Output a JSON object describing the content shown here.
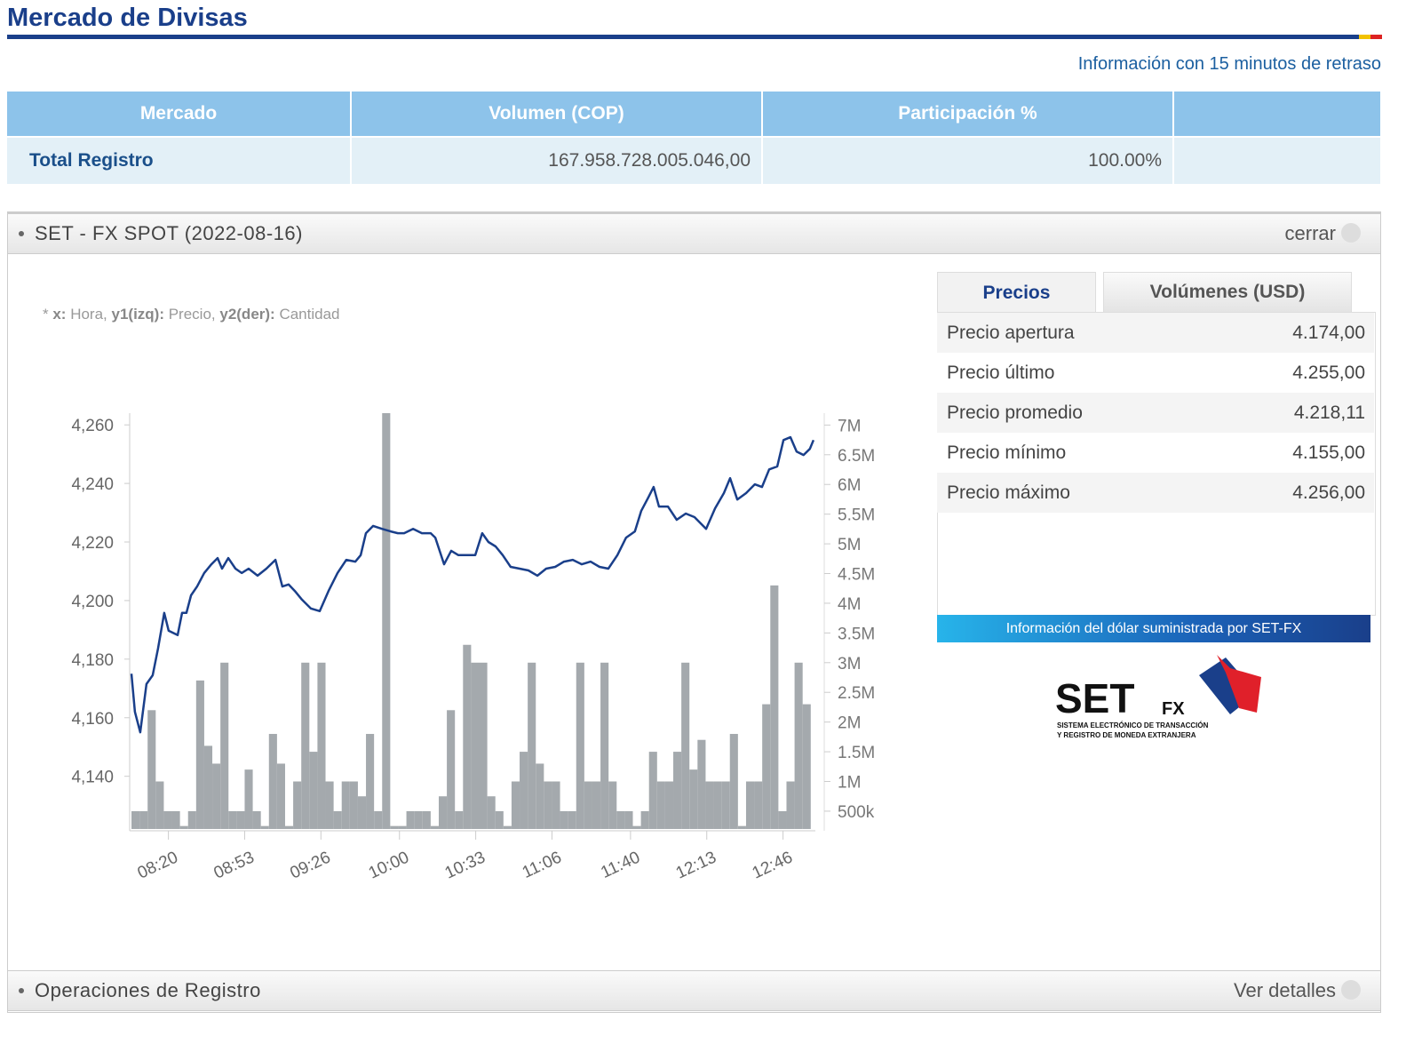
{
  "header": {
    "title": "Mercado de Divisas",
    "notice": "Información con 15 minutos de retraso"
  },
  "table": {
    "headers": [
      "Mercado",
      "Volumen (COP)",
      "Participación %"
    ],
    "rows": [
      [
        "Total Registro",
        "167.958.728.005.046,00",
        "100.00%"
      ]
    ]
  },
  "panel": {
    "title": "SET - FX SPOT (2022-08-16)",
    "action": "cerrar"
  },
  "chart_data": {
    "type": "line",
    "note": [
      {
        "text": "* ",
        "bold": false
      },
      {
        "text": "x:",
        "bold": true
      },
      {
        "text": " Hora, ",
        "bold": false
      },
      {
        "text": "y1(izq):",
        "bold": true
      },
      {
        "text": " Precio, ",
        "bold": false
      },
      {
        "text": "y2(der):",
        "bold": true
      },
      {
        "text": " Cantidad",
        "bold": false
      }
    ],
    "xlim": [
      484,
      780
    ],
    "xticks": [
      {
        "value": 500,
        "label": "08:20"
      },
      {
        "value": 533,
        "label": "08:53"
      },
      {
        "value": 566,
        "label": "09:26"
      },
      {
        "value": 600,
        "label": "10:00"
      },
      {
        "value": 633,
        "label": "10:33"
      },
      {
        "value": 666,
        "label": "11:06"
      },
      {
        "value": 700,
        "label": "11:40"
      },
      {
        "value": 733,
        "label": "12:13"
      },
      {
        "value": 766,
        "label": "12:46"
      }
    ],
    "ylim": [
      4122,
      4264
    ],
    "yticks": [
      {
        "value": 4140,
        "label": "4,140"
      },
      {
        "value": 4160,
        "label": "4,160"
      },
      {
        "value": 4180,
        "label": "4,180"
      },
      {
        "value": 4200,
        "label": "4,200"
      },
      {
        "value": 4220,
        "label": "4,220"
      },
      {
        "value": 4240,
        "label": "4,240"
      },
      {
        "value": 4260,
        "label": "4,260"
      }
    ],
    "y2lim": [
      200000,
      7200000
    ],
    "y2ticks": [
      {
        "value": 500000,
        "label": "500k"
      },
      {
        "value": 1000000,
        "label": "1M"
      },
      {
        "value": 1500000,
        "label": "1.5M"
      },
      {
        "value": 2000000,
        "label": "2M"
      },
      {
        "value": 2500000,
        "label": "2.5M"
      },
      {
        "value": 3000000,
        "label": "3M"
      },
      {
        "value": 3500000,
        "label": "3.5M"
      },
      {
        "value": 4000000,
        "label": "4M"
      },
      {
        "value": 4500000,
        "label": "4.5M"
      },
      {
        "value": 5000000,
        "label": "5M"
      },
      {
        "value": 5500000,
        "label": "5.5M"
      },
      {
        "value": 6000000,
        "label": "6M"
      },
      {
        "value": 6500000,
        "label": "6.5M"
      },
      {
        "value": 7000000,
        "label": "7M"
      }
    ],
    "series": [
      {
        "type": "bar",
        "axis": "y2",
        "color": "#a4a9ad",
        "x": [
          484,
          487.5,
          491,
          494.5,
          498,
          501.5,
          505,
          508.5,
          512,
          515.5,
          519,
          522.5,
          526,
          529.5,
          533,
          536.5,
          540,
          543.5,
          547,
          550.5,
          554,
          557.5,
          561,
          564.5,
          568,
          571.5,
          575,
          578.5,
          582,
          585.5,
          589,
          592.5,
          596,
          599.5,
          603,
          606.5,
          610,
          613.5,
          617,
          620.5,
          624,
          627.5,
          631,
          634.5,
          638,
          641.5,
          645,
          648.5,
          652,
          655.5,
          659,
          662.5,
          666,
          669.5,
          673,
          676.5,
          680,
          683.5,
          687,
          690.5,
          694,
          697.5,
          701,
          704.5,
          708,
          711.5,
          715,
          718.5,
          722,
          725.5,
          729,
          732.5,
          736,
          739.5,
          743,
          746.5,
          750,
          753.5,
          757,
          760.5,
          764,
          767.5,
          771,
          774.5
        ],
        "values": [
          500000,
          500000,
          2200000,
          1000000,
          500000,
          500000,
          250000,
          500000,
          2700000,
          1600000,
          1300000,
          3000000,
          500000,
          500000,
          1200000,
          500000,
          250000,
          1800000,
          1300000,
          250000,
          1000000,
          3000000,
          1500000,
          3000000,
          1000000,
          500000,
          1000000,
          1000000,
          750000,
          1800000,
          500000,
          7200000,
          250000,
          250000,
          500000,
          500000,
          500000,
          250000,
          750000,
          2200000,
          500000,
          3300000,
          3000000,
          3000000,
          750000,
          500000,
          250000,
          1000000,
          1500000,
          3000000,
          1300000,
          1000000,
          1000000,
          500000,
          500000,
          3000000,
          1000000,
          1000000,
          3000000,
          1000000,
          500000,
          500000,
          250000,
          500000,
          1500000,
          1000000,
          1000000,
          1500000,
          3000000,
          1200000,
          1700000,
          1000000,
          1000000,
          1000000,
          1800000,
          250000,
          1000000,
          1000000,
          2300000,
          4300000,
          500000,
          1000000,
          3000000,
          2300000
        ]
      },
      {
        "type": "line",
        "color": "#1a3f8a",
        "x": [
          484,
          485.5,
          487.8,
          490.5,
          493.2,
          495.5,
          498.2,
          500.1,
          504,
          505.9,
          507.8,
          509.8,
          512.4,
          515.5,
          518.6,
          521.3,
          523.2,
          525.9,
          529,
          531.7,
          534.7,
          538.6,
          542.4,
          546.3,
          549.3,
          552,
          554.7,
          557.8,
          561.6,
          565.5,
          569.3,
          573.2,
          577,
          580.9,
          583.2,
          585.5,
          588.6,
          592.4,
          596.2,
          599.3,
          602,
          605.9,
          609.7,
          613.5,
          615.5,
          619.3,
          622.4,
          625.5,
          628.9,
          632.8,
          635.8,
          638.5,
          641.6,
          644.7,
          648.1,
          652,
          655.8,
          659.7,
          663.5,
          667.4,
          671.2,
          675,
          678.9,
          682.7,
          686.6,
          690.4,
          694.3,
          698.1,
          701.9,
          704.6,
          707.7,
          710,
          712.3,
          716.2,
          720,
          723.9,
          727.7,
          732.7,
          736.6,
          740.4,
          743.1,
          746.2,
          750,
          753.8,
          756.9,
          760,
          763.5,
          766.2,
          769.2,
          771.9,
          774.9,
          777.6,
          779.2
        ],
        "values": [
          4175,
          4162,
          4155,
          4171.5,
          4174.5,
          4183.6,
          4195.8,
          4189.7,
          4188.2,
          4195.8,
          4195.8,
          4201.8,
          4204.8,
          4209.4,
          4212.4,
          4214.5,
          4210.9,
          4214.5,
          4210.9,
          4209.4,
          4210.9,
          4208.5,
          4210.9,
          4213.9,
          4204.8,
          4205.5,
          4203.3,
          4200.3,
          4197.3,
          4196.4,
          4203.3,
          4209.4,
          4213.9,
          4213.3,
          4215.5,
          4223,
          4225.5,
          4224.5,
          4223.6,
          4223,
          4223,
          4224.5,
          4223,
          4223,
          4221.5,
          4212.4,
          4217,
          4215.5,
          4215.5,
          4215.5,
          4223,
          4220,
          4218.5,
          4215.5,
          4211.5,
          4210.9,
          4210.3,
          4208.5,
          4210.9,
          4211.5,
          4213.3,
          4213.9,
          4212.4,
          4213.3,
          4211.5,
          4210.9,
          4215.5,
          4221.5,
          4223.6,
          4230.6,
          4235.2,
          4238.8,
          4232.1,
          4232.1,
          4227.6,
          4229.7,
          4228.5,
          4224.5,
          4231.5,
          4236.7,
          4241.8,
          4234.5,
          4236.7,
          4239.7,
          4238.8,
          4244.8,
          4245.8,
          4254.8,
          4255.8,
          4250.9,
          4249.7,
          4251.8,
          4254.8
        ]
      }
    ]
  },
  "tabs": [
    "Precios",
    "Volúmenes (USD)"
  ],
  "prices": [
    [
      "Precio apertura",
      "4.174,00"
    ],
    [
      "Precio último",
      "4.255,00"
    ],
    [
      "Precio promedio",
      "4.218,11"
    ],
    [
      "Precio mínimo",
      "4.155,00"
    ],
    [
      "Precio máximo",
      "4.256,00"
    ]
  ],
  "banner": "Información del dólar suministrada por SET-FX",
  "logo": {
    "name": "SET",
    "suffix": "FX",
    "line1": "SISTEMA ELECTRÓNICO DE TRANSACCIÓN",
    "line2": "Y REGISTRO DE MONEDA EXTRANJERA"
  },
  "bottom": {
    "title": "Operaciones de Registro",
    "action": "Ver detalles"
  }
}
